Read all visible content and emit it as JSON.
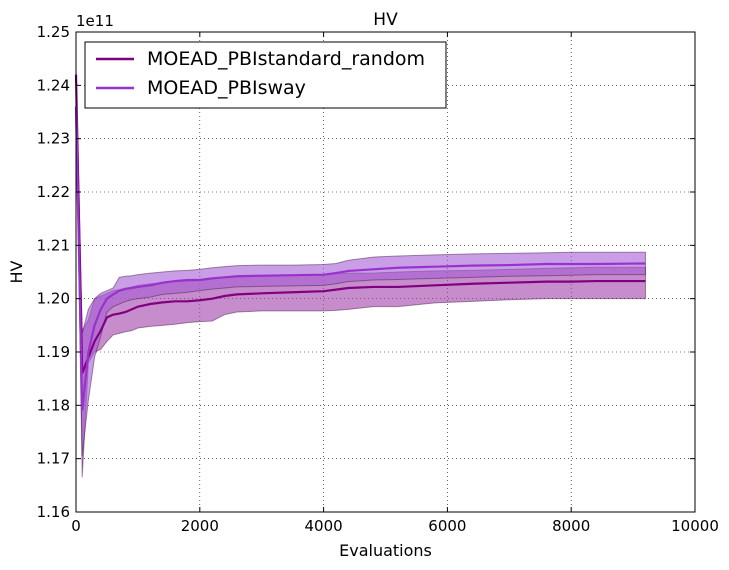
{
  "chart_data": {
    "type": "line",
    "title": "HV",
    "xlabel": "Evaluations",
    "ylabel": "HV",
    "offset_label": "1e11",
    "xlim": [
      0,
      10000
    ],
    "ylim": [
      1.16,
      1.25
    ],
    "xticks": [
      0,
      2000,
      4000,
      6000,
      8000,
      10000
    ],
    "xtick_labels": [
      "0",
      "2000",
      "4000",
      "6000",
      "8000",
      "10000"
    ],
    "yticks": [
      1.16,
      1.17,
      1.18,
      1.19,
      1.2,
      1.21,
      1.22,
      1.23,
      1.24,
      1.25
    ],
    "ytick_labels": [
      "1.16",
      "1.17",
      "1.18",
      "1.19",
      "1.20",
      "1.21",
      "1.22",
      "1.23",
      "1.24",
      "1.25"
    ],
    "grid": true,
    "legend_position": "top-left",
    "series": [
      {
        "name": "MOEAD_PBIstandard_random",
        "color": "#800080",
        "band_color": "#a040a8",
        "x": [
          0,
          100,
          200,
          300,
          400,
          500,
          600,
          700,
          800,
          900,
          1000,
          1200,
          1400,
          1600,
          1800,
          2000,
          2200,
          2400,
          2600,
          3000,
          3500,
          4000,
          4200,
          4400,
          4800,
          5200,
          5800,
          6400,
          7000,
          7600,
          8000,
          8400,
          9200
        ],
        "mean": [
          1.242,
          1.186,
          1.189,
          1.192,
          1.194,
          1.1965,
          1.197,
          1.1972,
          1.1975,
          1.198,
          1.1985,
          1.199,
          1.1993,
          1.1995,
          1.1995,
          1.1997,
          1.2,
          1.2005,
          1.2008,
          1.201,
          1.2012,
          1.2014,
          1.2017,
          1.202,
          1.2022,
          1.2022,
          1.2025,
          1.2028,
          1.203,
          1.2032,
          1.2032,
          1.2033,
          1.2033
        ],
        "upper": [
          1.243,
          1.194,
          1.196,
          1.2,
          1.2005,
          1.201,
          1.2015,
          1.2017,
          1.202,
          1.2022,
          1.2025,
          1.2028,
          1.203,
          1.2032,
          1.2033,
          1.2035,
          1.2037,
          1.204,
          1.2042,
          1.2043,
          1.2044,
          1.2045,
          1.2047,
          1.2048,
          1.2048,
          1.205,
          1.2052,
          1.2053,
          1.2055,
          1.2057,
          1.2058,
          1.2059,
          1.2059
        ],
        "lower": [
          1.241,
          1.1665,
          1.188,
          1.19,
          1.1905,
          1.192,
          1.1932,
          1.1935,
          1.1938,
          1.194,
          1.1945,
          1.1948,
          1.195,
          1.1952,
          1.1955,
          1.1957,
          1.1958,
          1.197,
          1.1975,
          1.1977,
          1.1977,
          1.1977,
          1.1978,
          1.198,
          1.1985,
          1.1985,
          1.1992,
          1.1995,
          1.1998,
          1.2,
          1.2,
          1.2,
          1.2
        ]
      },
      {
        "name": "MOEAD_PBIsway",
        "color": "#9932cc",
        "band_color": "#a65ed6",
        "x": [
          0,
          100,
          200,
          300,
          400,
          500,
          600,
          700,
          800,
          900,
          1000,
          1200,
          1400,
          1600,
          1800,
          2000,
          2200,
          2400,
          2600,
          3000,
          3500,
          4000,
          4200,
          4400,
          4800,
          5200,
          5800,
          6400,
          7000,
          7600,
          8000,
          8400,
          9200
        ],
        "mean": [
          1.236,
          1.179,
          1.19,
          1.195,
          1.198,
          1.2,
          1.2008,
          1.2015,
          1.2018,
          1.202,
          1.2022,
          1.2025,
          1.203,
          1.2033,
          1.2035,
          1.2035,
          1.2038,
          1.204,
          1.2042,
          1.2043,
          1.2044,
          1.2045,
          1.2048,
          1.2052,
          1.2055,
          1.2058,
          1.206,
          1.2062,
          1.2063,
          1.2065,
          1.2065,
          1.2065,
          1.2066
        ],
        "upper": [
          1.237,
          1.1935,
          1.198,
          1.2,
          1.201,
          1.2015,
          1.202,
          1.204,
          1.2042,
          1.2043,
          1.2045,
          1.2048,
          1.205,
          1.2052,
          1.2053,
          1.2055,
          1.2058,
          1.206,
          1.2062,
          1.2063,
          1.2063,
          1.2064,
          1.2066,
          1.2072,
          1.2078,
          1.208,
          1.2082,
          1.2084,
          1.2085,
          1.2086,
          1.2087,
          1.2087,
          1.2087
        ],
        "lower": [
          1.235,
          1.1705,
          1.181,
          1.189,
          1.193,
          1.1975,
          1.1985,
          1.199,
          1.1995,
          1.1998,
          1.2,
          1.2003,
          1.2008,
          1.201,
          1.2012,
          1.2015,
          1.2018,
          1.202,
          1.2022,
          1.2023,
          1.2024,
          1.2025,
          1.2028,
          1.2032,
          1.2035,
          1.2036,
          1.2038,
          1.204,
          1.2042,
          1.2043,
          1.2044,
          1.2045,
          1.2045
        ]
      }
    ]
  }
}
